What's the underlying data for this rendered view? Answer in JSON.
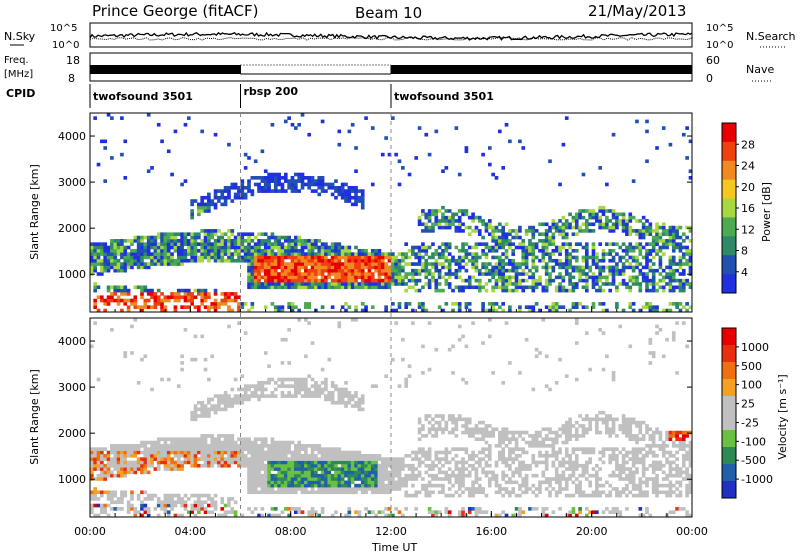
{
  "header": {
    "station": "Prince George (fitACF)",
    "beam": "Beam 10",
    "date": "21/May/2013"
  },
  "nsky": {
    "label": "N.Sky",
    "ticks": [
      "10^5",
      "10^0"
    ],
    "right_label": "N.Search",
    "right_ticks": [
      "10^5",
      "10^0"
    ]
  },
  "freq": {
    "label_line1": "Freq.",
    "label_line2": "[MHz]",
    "ticks": [
      "18",
      "8"
    ],
    "right_label": "Nave",
    "right_ticks": [
      "60",
      "0"
    ]
  },
  "cpid": {
    "label": "CPID",
    "segments": [
      {
        "name": "twofsound 3501",
        "start": 0,
        "end": 6
      },
      {
        "name": "rbsp 200",
        "start": 6,
        "end": 12
      },
      {
        "name": "twofsound 3501",
        "start": 12,
        "end": 24
      }
    ]
  },
  "chart_data": [
    {
      "type": "heatmap",
      "title": "",
      "ylabel": "Slant Range [km]",
      "xlabel": "",
      "xlim": [
        0,
        24
      ],
      "ylim": [
        180,
        4500
      ],
      "yticks": [
        "4000",
        "3000",
        "2000",
        "1000"
      ],
      "colorbar": {
        "label": "Power [dB]",
        "ticks": [
          "28",
          "24",
          "20",
          "16",
          "12",
          "8",
          "4"
        ],
        "colors": [
          "#2030e0",
          "#2050b0",
          "#2e8a66",
          "#4caa50",
          "#a8d840",
          "#f5c820",
          "#f08a20",
          "#f04010",
          "#e80000"
        ]
      }
    },
    {
      "type": "heatmap",
      "title": "",
      "ylabel": "Slant Range [km]",
      "xlabel": "Time UT",
      "xlim": [
        0,
        24
      ],
      "ylim": [
        180,
        4500
      ],
      "yticks": [
        "4000",
        "3000",
        "2000",
        "1000"
      ],
      "xticks": [
        "00:00",
        "04:00",
        "08:00",
        "12:00",
        "16:00",
        "20:00",
        "00:00"
      ],
      "colorbar": {
        "label": "Velocity [m s⁻¹]",
        "ticks": [
          "1000",
          "500",
          "100",
          "25",
          "-25",
          "-100",
          "-500",
          "-1000"
        ],
        "colors": [
          "#2030c0",
          "#2060a8",
          "#2e8a55",
          "#6ac040",
          "#c0c0c0",
          "#c0c0c0",
          "#f5a020",
          "#f07010",
          "#e83010",
          "#e80000"
        ]
      }
    }
  ]
}
